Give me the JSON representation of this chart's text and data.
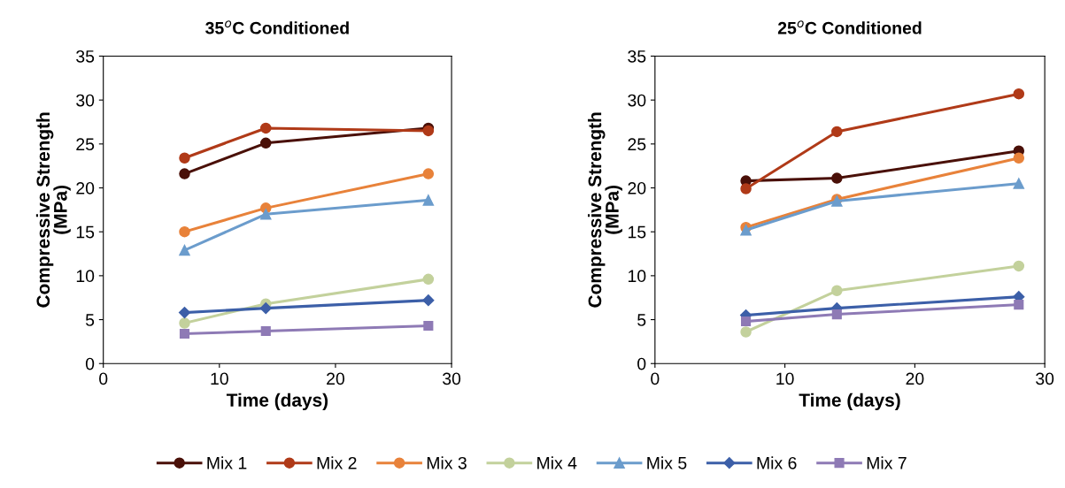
{
  "chart_data": [
    {
      "type": "line",
      "title": "35$^{o}$C Conditioned",
      "xlabel": "Time (days)",
      "ylabel": "Compressive Strength\n(MPa)",
      "x": [
        7,
        14,
        28
      ],
      "xlim": [
        0,
        30
      ],
      "xticks": [
        0,
        10,
        20,
        30
      ],
      "ylim": [
        0,
        35
      ],
      "yticks": [
        0,
        5,
        10,
        15,
        20,
        25,
        30,
        35
      ],
      "grid": false,
      "legend": "bottom",
      "series": [
        {
          "name": "Mix 1",
          "color": "#4a1008",
          "marker": "circle",
          "values": [
            21.6,
            25.1,
            26.8
          ]
        },
        {
          "name": "Mix 2",
          "color": "#b03a18",
          "marker": "circle",
          "values": [
            23.4,
            26.8,
            26.5
          ]
        },
        {
          "name": "Mix 3",
          "color": "#e8823a",
          "marker": "circle",
          "values": [
            15.0,
            17.7,
            21.6
          ]
        },
        {
          "name": "Mix 4",
          "color": "#c3d19c",
          "marker": "circle",
          "values": [
            4.6,
            6.8,
            9.6
          ]
        },
        {
          "name": "Mix 5",
          "color": "#6b9ccc",
          "marker": "triangle",
          "values": [
            12.9,
            17.0,
            18.6
          ]
        },
        {
          "name": "Mix 6",
          "color": "#3c5fa8",
          "marker": "diamond",
          "values": [
            5.8,
            6.3,
            7.2
          ]
        },
        {
          "name": "Mix 7",
          "color": "#8e7ab5",
          "marker": "square",
          "values": [
            3.4,
            3.7,
            4.3
          ]
        }
      ]
    },
    {
      "type": "line",
      "title": "25$^{o}$C Conditioned",
      "xlabel": "Time (days)",
      "ylabel": "Compressive Strength\n(MPa)",
      "x": [
        7,
        14,
        28
      ],
      "xlim": [
        0,
        30
      ],
      "xticks": [
        0,
        10,
        20,
        30
      ],
      "ylim": [
        0,
        35
      ],
      "yticks": [
        0,
        5,
        10,
        15,
        20,
        25,
        30,
        35
      ],
      "grid": false,
      "series": [
        {
          "color": "#4a1008",
          "marker": "circle",
          "values": [
            20.8,
            21.1,
            24.2
          ]
        },
        {
          "color": "#b03a18",
          "marker": "circle",
          "values": [
            19.9,
            26.4,
            30.7
          ]
        },
        {
          "color": "#e8823a",
          "marker": "circle",
          "values": [
            15.5,
            18.7,
            23.4
          ]
        },
        {
          "color": "#c3d19c",
          "marker": "circle",
          "values": [
            3.6,
            8.3,
            11.1
          ]
        },
        {
          "color": "#6b9ccc",
          "marker": "triangle",
          "values": [
            15.2,
            18.5,
            20.5
          ]
        },
        {
          "color": "#3c5fa8",
          "marker": "diamond",
          "values": [
            5.5,
            6.3,
            7.6
          ]
        },
        {
          "color": "#8e7ab5",
          "marker": "square",
          "values": [
            4.8,
            5.6,
            6.7
          ]
        }
      ]
    }
  ]
}
